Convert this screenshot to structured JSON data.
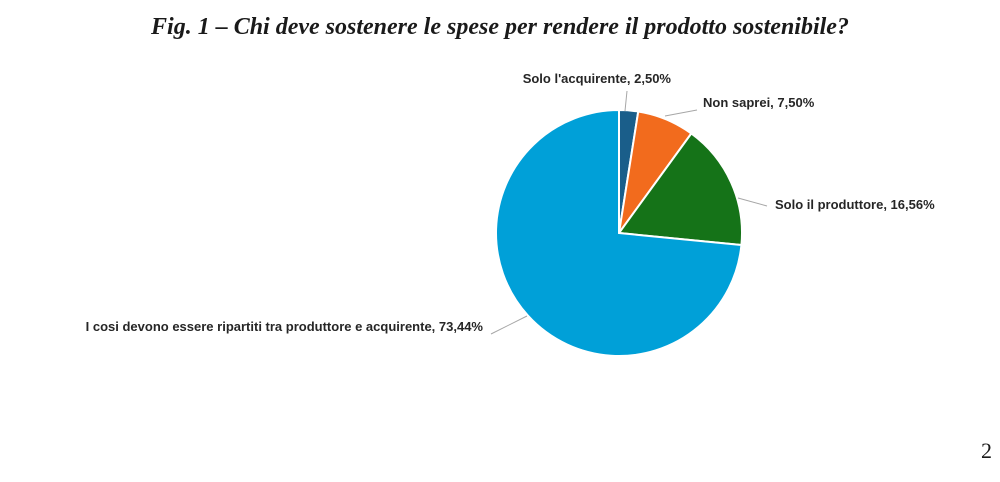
{
  "page": {
    "title": "Fig. 1 – Chi deve sostenere le spese per rendere il prodotto sostenibile?",
    "page_number": "2"
  },
  "chart_data": {
    "type": "pie",
    "title": "Fig. 1 – Chi deve sostenere le spese per rendere il prodotto sostenibile?",
    "start_angle_deg": 0,
    "direction": "clockwise",
    "legend": "none",
    "slices": [
      {
        "label": "Solo l'acquirente",
        "value": 2.5,
        "value_label": "2,50%",
        "color": "#1a5e8a"
      },
      {
        "label": "Non saprei",
        "value": 7.5,
        "value_label": "7,50%",
        "color": "#f26b1d"
      },
      {
        "label": "Solo il produttore",
        "value": 16.56,
        "value_label": "16,56%",
        "color": "#157318"
      },
      {
        "label": "I cosi devono essere ripartiti tra produttore e acquirente",
        "value": 73.44,
        "value_label": "73,44%",
        "color": "#00a0d8"
      }
    ]
  }
}
